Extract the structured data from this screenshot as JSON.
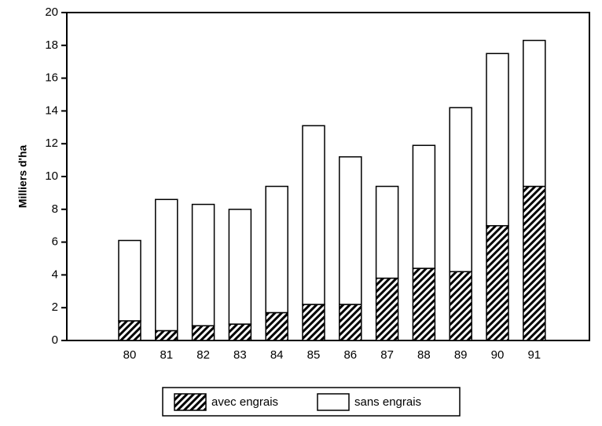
{
  "chart_data": {
    "type": "stacked-bar",
    "y_label": "Milliers d'ha",
    "categories": [
      "80",
      "81",
      "82",
      "83",
      "84",
      "85",
      "86",
      "87",
      "88",
      "89",
      "90",
      "91"
    ],
    "series": [
      {
        "name": "avec engrais",
        "color": "#000000",
        "hatch": true,
        "values": [
          1.2,
          0.6,
          0.9,
          1.0,
          1.7,
          2.2,
          2.2,
          3.8,
          4.4,
          4.2,
          7.0,
          9.4
        ]
      },
      {
        "name": "sans engrais",
        "color": "#ffffff",
        "hatch": false,
        "values": [
          4.9,
          8.0,
          7.4,
          7.0,
          7.7,
          10.9,
          9.0,
          5.6,
          7.5,
          10.0,
          10.5,
          8.9
        ]
      }
    ],
    "ylim": [
      0,
      20
    ],
    "yticks": [
      0,
      2,
      4,
      6,
      8,
      10,
      12,
      14,
      16,
      18,
      20
    ]
  }
}
